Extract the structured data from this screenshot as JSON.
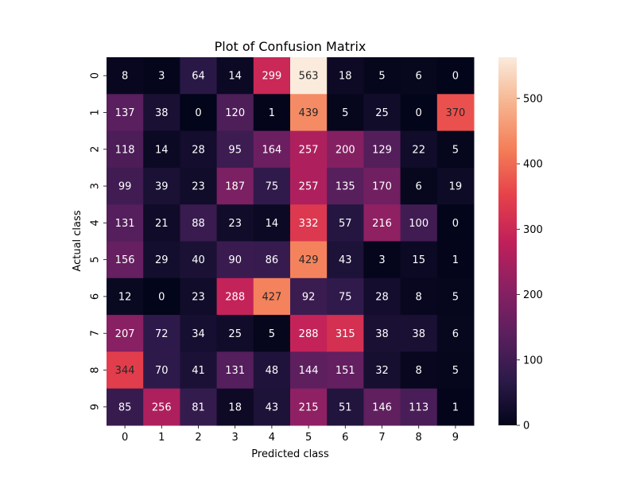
{
  "chart_data": {
    "type": "heatmap",
    "title": "Plot of Confusion Matrix",
    "xlabel": "Predicted class",
    "ylabel": "Actual class",
    "x_categories": [
      "0",
      "1",
      "2",
      "3",
      "4",
      "5",
      "6",
      "7",
      "8",
      "9"
    ],
    "y_categories": [
      "0",
      "1",
      "2",
      "3",
      "4",
      "5",
      "6",
      "7",
      "8",
      "9"
    ],
    "values": [
      [
        8,
        3,
        64,
        14,
        299,
        563,
        18,
        5,
        6,
        0
      ],
      [
        137,
        38,
        0,
        120,
        1,
        439,
        5,
        25,
        0,
        370
      ],
      [
        118,
        14,
        28,
        95,
        164,
        257,
        200,
        129,
        22,
        5
      ],
      [
        99,
        39,
        23,
        187,
        75,
        257,
        135,
        170,
        6,
        19
      ],
      [
        131,
        21,
        88,
        23,
        14,
        332,
        57,
        216,
        100,
        0
      ],
      [
        156,
        29,
        40,
        90,
        86,
        429,
        43,
        3,
        15,
        1
      ],
      [
        12,
        0,
        23,
        288,
        427,
        92,
        75,
        28,
        8,
        5
      ],
      [
        207,
        72,
        34,
        25,
        5,
        288,
        315,
        38,
        38,
        6
      ],
      [
        344,
        70,
        41,
        131,
        48,
        144,
        151,
        32,
        8,
        5
      ],
      [
        85,
        256,
        81,
        18,
        43,
        215,
        51,
        146,
        113,
        1
      ]
    ],
    "colorbar": {
      "min": 0,
      "max": 563,
      "ticks": [
        0,
        100,
        200,
        300,
        400,
        500
      ],
      "colormap": "rocket",
      "stops": [
        "#03051a",
        "#2d1a4a",
        "#5c1f5f",
        "#8b2063",
        "#c1205a",
        "#e6414a",
        "#f47e58",
        "#f6b48e",
        "#faebdd"
      ]
    },
    "grid": false,
    "legend": "colorbar-right"
  }
}
